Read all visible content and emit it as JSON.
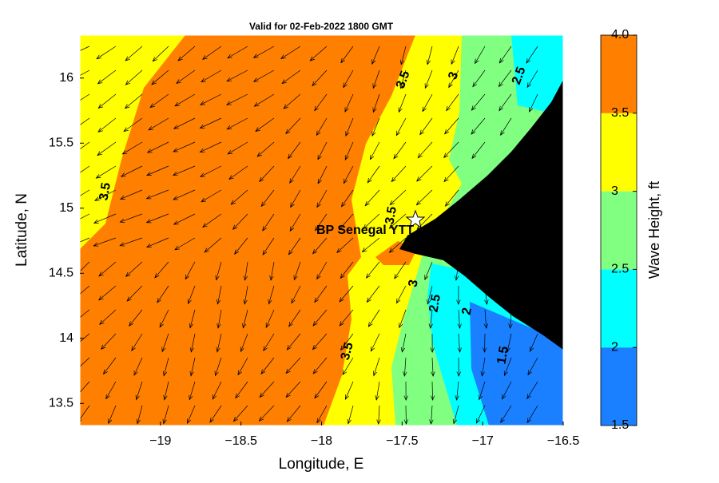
{
  "chart_data": {
    "type": "contour",
    "title": "Valid for 02-Feb-2022 1800 GMT",
    "x_label": "Longitude, E",
    "y_label": "Latitude, N",
    "xlim": [
      -19.5,
      -16.5
    ],
    "ylim": [
      13.33,
      16.33
    ],
    "xticks": [
      {
        "value": -19,
        "label": "−19"
      },
      {
        "value": -18.5,
        "label": "−18.5"
      },
      {
        "value": -18,
        "label": "−18"
      },
      {
        "value": -17.5,
        "label": "−17.5"
      },
      {
        "value": -17,
        "label": "−17"
      },
      {
        "value": -16.5,
        "label": "−16.5"
      }
    ],
    "yticks": [
      13.5,
      14,
      14.5,
      15,
      15.5,
      16
    ],
    "colorbar": {
      "label": "Wave Height, ft",
      "lim": [
        1.5,
        4
      ],
      "ticks": [
        {
          "value": 4,
          "label": "4.0"
        },
        3.5,
        3,
        2.5,
        2,
        1.5
      ],
      "levels": [
        1.5,
        2,
        2.5,
        3,
        3.5
      ],
      "colors": [
        "#1a80ff",
        "#00ffff",
        "#80ff80",
        "#ffff00",
        "#ff8000"
      ]
    },
    "contour_labels": [
      3.5,
      3,
      2.5,
      3.5,
      3.5,
      3.5,
      3,
      2.5,
      2,
      1.5
    ],
    "station": "BP Senegal YTT",
    "land_color": "#000000"
  }
}
